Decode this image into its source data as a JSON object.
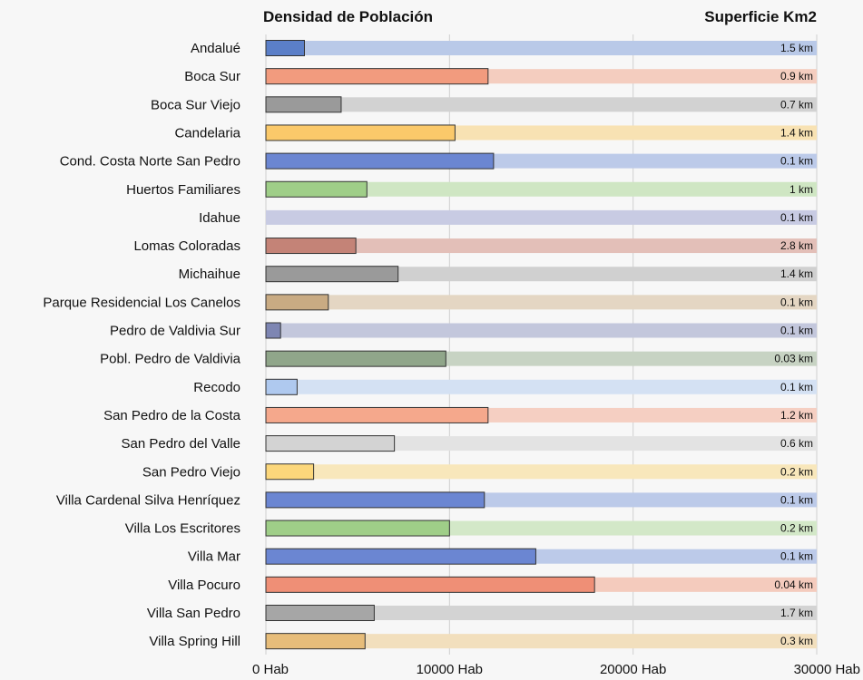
{
  "chart_data": {
    "type": "bar",
    "orientation": "horizontal",
    "title_left": "Densidad de Población",
    "title_right": "Superficie Km2",
    "xlim": [
      0,
      30000
    ],
    "x_ticks": [
      {
        "value": 0,
        "label": "0 Hab"
      },
      {
        "value": 10000,
        "label": "10000 Hab"
      },
      {
        "value": 20000,
        "label": "20000 Hab"
      },
      {
        "value": 30000,
        "label": "30000 Hab"
      }
    ],
    "grid": true,
    "rows": [
      {
        "name": "Andalué",
        "density": 2100,
        "area_label": "1.5 km",
        "color": "#5b7fc8",
        "track": "#b9c9e8"
      },
      {
        "name": "Boca Sur",
        "density": 12100,
        "area_label": "0.9 km",
        "color": "#f29b7e",
        "track": "#f4cdbf"
      },
      {
        "name": "Boca Sur Viejo",
        "density": 4100,
        "area_label": "0.7 km",
        "color": "#9a9a9a",
        "track": "#d2d2d2"
      },
      {
        "name": "Candelaria",
        "density": 10300,
        "area_label": "1.4 km",
        "color": "#fbc96a",
        "track": "#f8e2b3"
      },
      {
        "name": "Cond. Costa Norte San Pedro",
        "density": 12400,
        "area_label": "0.1 km",
        "color": "#6b86d2",
        "track": "#bccae9"
      },
      {
        "name": "Huertos Familiares",
        "density": 5500,
        "area_label": "1 km",
        "color": "#9fce88",
        "track": "#cfe6c3"
      },
      {
        "name": "Idahue",
        "density": 0,
        "area_label": "0.1 km",
        "color": "#9ea3cf",
        "track": "#c8cbe3"
      },
      {
        "name": "Lomas Coloradas",
        "density": 4900,
        "area_label": "2.8  km",
        "color": "#c48377",
        "track": "#e3bfb8"
      },
      {
        "name": "Michaihue",
        "density": 7200,
        "area_label": "1.4 km",
        "color": "#9a9a9a",
        "track": "#d0d0d0"
      },
      {
        "name": "Parque Residencial Los Canelos",
        "density": 3400,
        "area_label": "0.1 km",
        "color": "#c9ab83",
        "track": "#e4d6c3"
      },
      {
        "name": "Pedro de Valdivia Sur",
        "density": 800,
        "area_label": "0.1 km",
        "color": "#7e86b3",
        "track": "#c3c7dc"
      },
      {
        "name": "Pobl. Pedro de Valdivia",
        "density": 9800,
        "area_label": "0.03 km",
        "color": "#90a68a",
        "track": "#c7d3c3"
      },
      {
        "name": "Recodo",
        "density": 1700,
        "area_label": "0.1 km",
        "color": "#afc9ef",
        "track": "#d4e1f3"
      },
      {
        "name": "San Pedro de la  Costa",
        "density": 12100,
        "area_label": "1.2 km",
        "color": "#f5a88c",
        "track": "#f5cfc2"
      },
      {
        "name": "San Pedro del Valle",
        "density": 7000,
        "area_label": "0.6 km",
        "color": "#d3d3d3",
        "track": "#e3e3e3"
      },
      {
        "name": "San Pedro Viejo",
        "density": 2600,
        "area_label": "0.2 km",
        "color": "#fcd77b",
        "track": "#f8e7bb"
      },
      {
        "name": "Villa Cardenal Silva Henríquez",
        "density": 11900,
        "area_label": "0.1 km",
        "color": "#6b86d2",
        "track": "#bccae9"
      },
      {
        "name": "Villa Los Escritores",
        "density": 10000,
        "area_label": "0.2 km",
        "color": "#9fce88",
        "track": "#d3e8c8"
      },
      {
        "name": "Villa Mar",
        "density": 14700,
        "area_label": "0.1 km",
        "color": "#6b86d2",
        "track": "#bccae9"
      },
      {
        "name": "Villa Pocuro",
        "density": 17900,
        "area_label": "0.04 km",
        "color": "#ef8f76",
        "track": "#f4cbbd"
      },
      {
        "name": "Villa San Pedro",
        "density": 5900,
        "area_label": "1.7 km",
        "color": "#a6a6a6",
        "track": "#d3d3d3"
      },
      {
        "name": "Villa Spring Hill",
        "density": 5400,
        "area_label": "0.3 km",
        "color": "#e7bd7a",
        "track": "#f2dfbd"
      }
    ]
  }
}
